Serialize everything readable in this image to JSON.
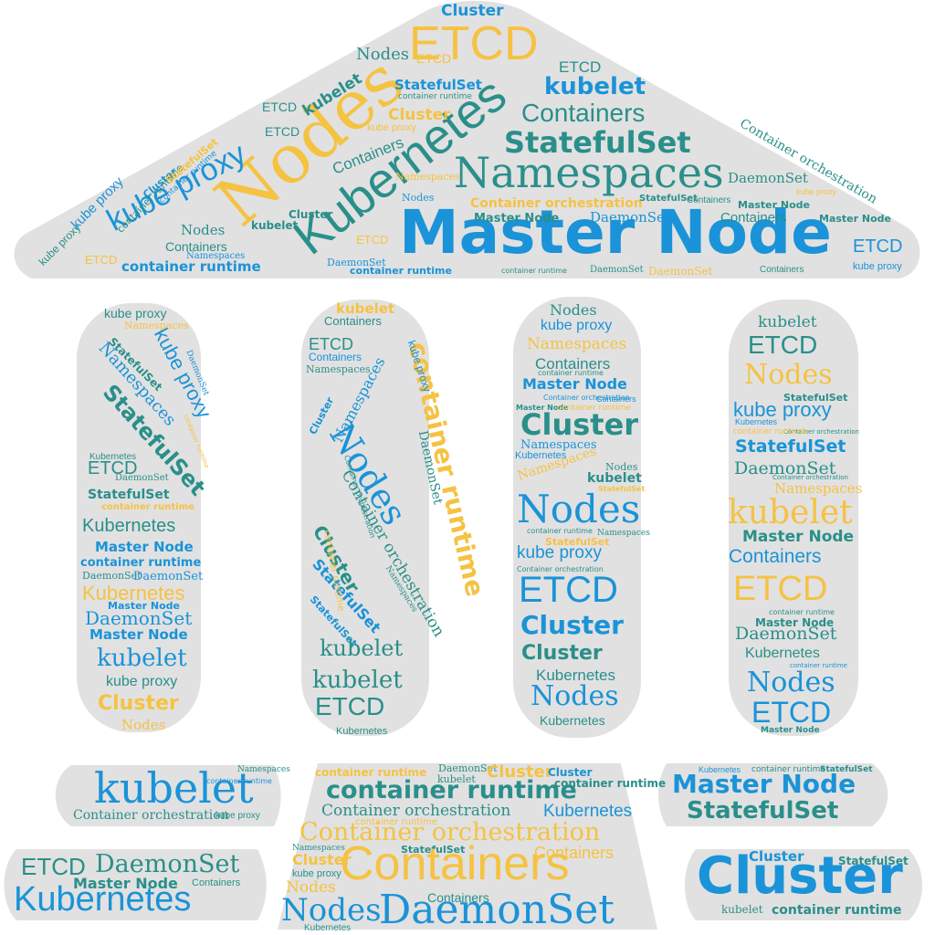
{
  "palette": {
    "background": "#ffffff",
    "shape_fill": "#e1e1e1",
    "blue": "#1a93d8",
    "teal": "#2a8f8a",
    "gold": "#f5c242",
    "sky": "#2ea3e0"
  },
  "terms": [
    "Master Node",
    "Kubernetes",
    "Nodes",
    "Namespaces",
    "StatefulSet",
    "Containers",
    "kubelet",
    "Cluster",
    "ETCD",
    "kube proxy",
    "container runtime",
    "DaemonSet",
    "Container orchestration"
  ]
}
